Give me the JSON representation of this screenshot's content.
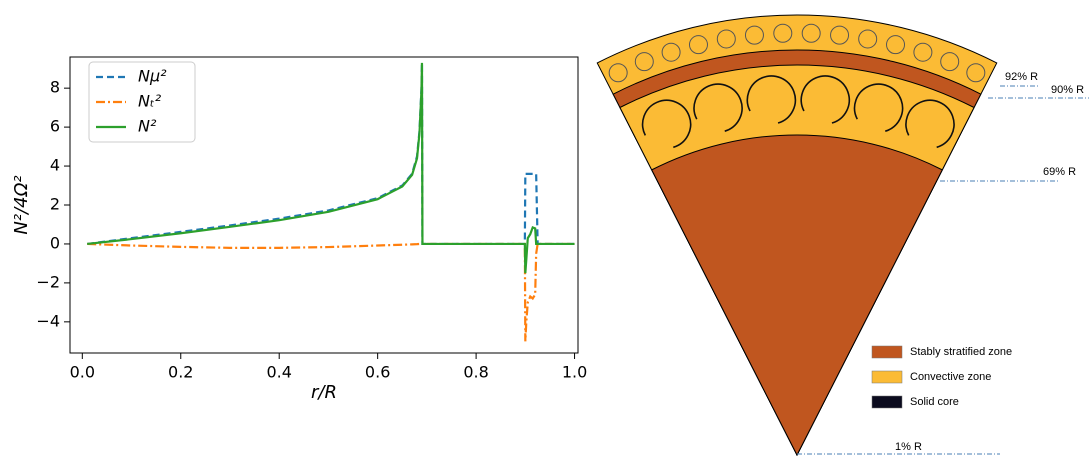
{
  "chart_data": {
    "type": "line",
    "xlabel": "r/R",
    "ylabel": "N²/4Ω²",
    "xlim": [
      -0.025,
      1.007
    ],
    "ylim": [
      -5.6,
      9.6
    ],
    "xticks": [
      {
        "value": 0,
        "label": "0.0"
      },
      0.2,
      0.4,
      0.6,
      0.8,
      {
        "value": 1,
        "label": "1.0"
      }
    ],
    "yticks": [
      {
        "value": -4,
        "label": "−4"
      },
      {
        "value": -2,
        "label": "−2"
      },
      0,
      2,
      4,
      6,
      8
    ],
    "legend": "upper left",
    "x": [
      0.01,
      0.1,
      0.2,
      0.3,
      0.4,
      0.5,
      0.6,
      0.65,
      0.67,
      0.68,
      0.685,
      0.689,
      0.69,
      0.691,
      0.8,
      0.899,
      0.9,
      0.902,
      0.905,
      0.91,
      0.915,
      0.92,
      0.922,
      0.925,
      1.0
    ],
    "series": [
      {
        "name": "Nμ²",
        "color": "#1f77b4",
        "linestyle": "dashed",
        "values": [
          0,
          0.3,
          0.62,
          0.95,
          1.3,
          1.72,
          2.35,
          3.0,
          3.6,
          4.5,
          5.8,
          8,
          9.3,
          0,
          0,
          0,
          3.6,
          3.6,
          3.6,
          3.6,
          3.6,
          3.6,
          3.6,
          0,
          0
        ]
      },
      {
        "name": "Nₜ²",
        "color": "#ff7f0e",
        "linestyle": "dashdot",
        "values": [
          0,
          -0.08,
          -0.15,
          -0.2,
          -0.2,
          -0.16,
          -0.08,
          -0.04,
          -0.02,
          -0.01,
          0,
          0,
          0,
          0,
          0,
          0,
          -5,
          -4,
          -3,
          -2.7,
          -2.8,
          -2.6,
          -0.5,
          0,
          0
        ]
      },
      {
        "name": "N²",
        "color": "#2ca02c",
        "linestyle": "solid",
        "values": [
          0,
          0.25,
          0.55,
          0.88,
          1.22,
          1.65,
          2.3,
          2.95,
          3.55,
          4.4,
          5.7,
          7.9,
          9.3,
          0,
          0,
          0,
          -1.5,
          -0.8,
          0.3,
          0.5,
          0.85,
          0.8,
          0,
          0,
          0
        ]
      }
    ]
  },
  "diagram": {
    "radius_labels": [
      "92% R",
      "90% R",
      "69% R",
      "1% R"
    ],
    "legend": [
      "Stably stratified zone",
      "Convective zone",
      "Solid core"
    ]
  }
}
